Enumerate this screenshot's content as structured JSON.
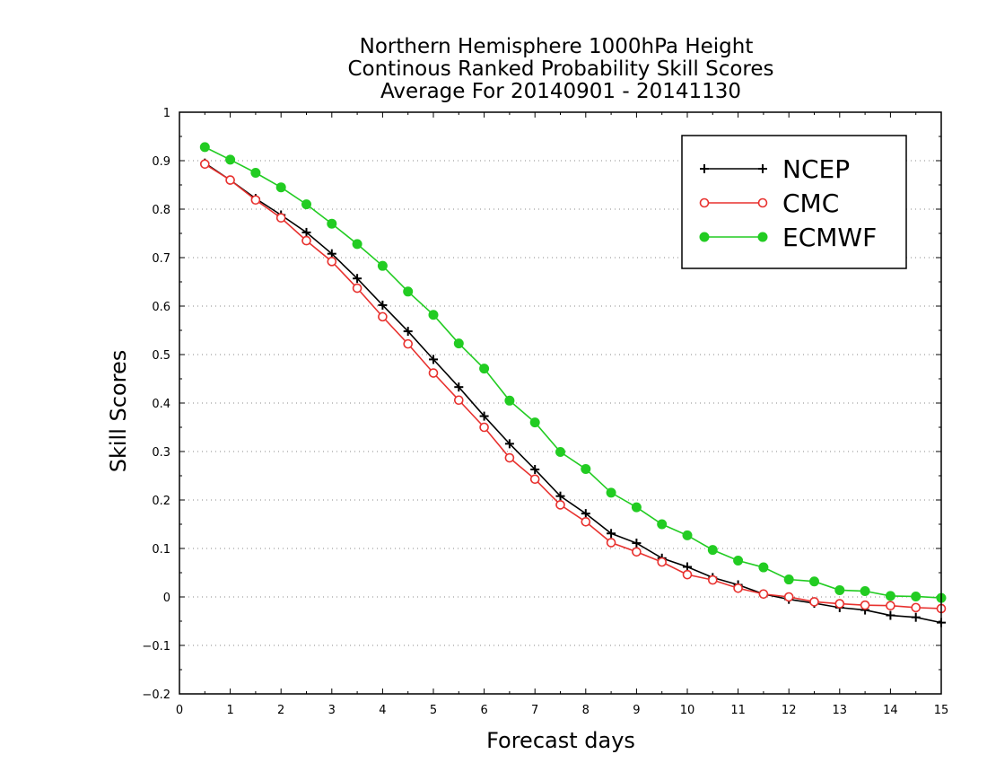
{
  "chart_data": {
    "type": "line",
    "title": [
      "Northern Hemisphere 1000hPa Height",
      "Continous Ranked Probability Skill Scores",
      "Average For 20140901 - 20141130"
    ],
    "xlabel": "Forecast days",
    "ylabel": "Skill Scores",
    "xlim": [
      0,
      15
    ],
    "ylim": [
      -0.2,
      1
    ],
    "xticks": [
      "0",
      "1",
      "2",
      "3",
      "4",
      "5",
      "6",
      "7",
      "8",
      "9",
      "10",
      "11",
      "12",
      "13",
      "14",
      "15"
    ],
    "yticks": [
      "−0.2",
      "−0.1",
      "0",
      "0.1",
      "0.2",
      "0.3",
      "0.4",
      "0.5",
      "0.6",
      "0.7",
      "0.8",
      "0.9",
      "1"
    ],
    "grid": "horizontal dotted",
    "legend_position": "top-right",
    "x": [
      0.5,
      1,
      1.5,
      2,
      2.5,
      3,
      3.5,
      4,
      4.5,
      5,
      5.5,
      6,
      6.5,
      7,
      7.5,
      8,
      8.5,
      9,
      9.5,
      10,
      10.5,
      11,
      11.5,
      12,
      12.5,
      13,
      13.5,
      14,
      14.5,
      15
    ],
    "series": [
      {
        "name": "NCEP",
        "color": "#000000",
        "marker": "plus",
        "values": [
          0.895,
          0.86,
          0.822,
          0.788,
          0.752,
          0.708,
          0.657,
          0.602,
          0.548,
          0.49,
          0.433,
          0.373,
          0.316,
          0.263,
          0.208,
          0.172,
          0.131,
          0.111,
          0.08,
          0.062,
          0.04,
          0.025,
          0.006,
          -0.005,
          -0.013,
          -0.022,
          -0.027,
          -0.038,
          -0.042,
          -0.053
        ]
      },
      {
        "name": "CMC",
        "color": "#e8312e",
        "marker": "open-circle",
        "values": [
          0.893,
          0.86,
          0.819,
          0.782,
          0.735,
          0.692,
          0.637,
          0.578,
          0.522,
          0.462,
          0.406,
          0.35,
          0.287,
          0.243,
          0.19,
          0.155,
          0.112,
          0.093,
          0.072,
          0.046,
          0.035,
          0.018,
          0.006,
          0.0,
          -0.01,
          -0.014,
          -0.017,
          -0.018,
          -0.022,
          -0.024
        ]
      },
      {
        "name": "ECMWF",
        "color": "#22cc22",
        "marker": "filled-circle",
        "values": [
          0.928,
          0.902,
          0.875,
          0.845,
          0.81,
          0.77,
          0.728,
          0.683,
          0.63,
          0.582,
          0.523,
          0.471,
          0.405,
          0.36,
          0.299,
          0.264,
          0.215,
          0.185,
          0.15,
          0.127,
          0.097,
          0.075,
          0.061,
          0.036,
          0.032,
          0.014,
          0.012,
          0.002,
          0.001,
          -0.002
        ]
      }
    ]
  }
}
